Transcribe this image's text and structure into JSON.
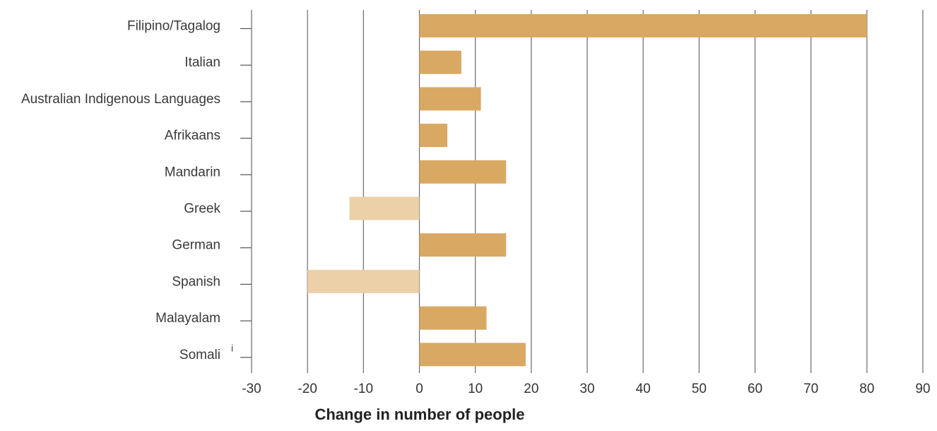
{
  "chart_data": {
    "type": "bar",
    "orientation": "horizontal",
    "categories": [
      "Filipino/Tagalog",
      "Italian",
      "Australian Indigenous Languages",
      "Afrikaans",
      "Mandarin",
      "Greek",
      "German",
      "Spanish",
      "Malayalam",
      "Somali"
    ],
    "values": [
      80,
      7.5,
      11,
      5,
      15.5,
      -12.5,
      15.5,
      -20,
      12,
      19
    ],
    "xlabel": "Change in number of people",
    "ylabel": "",
    "xlim": [
      -30,
      90
    ],
    "xticks": [
      "-30",
      "-20",
      "-10",
      "0",
      "10",
      "20",
      "30",
      "40",
      "50",
      "60",
      "70",
      "80",
      "90"
    ],
    "grid": "vertical",
    "annotations": [
      {
        "category": "Somali",
        "text": "i"
      }
    ],
    "colors": {
      "positive": "#d9a863",
      "negative": "#ecd0a8",
      "grid": "#6b6b6b"
    }
  }
}
